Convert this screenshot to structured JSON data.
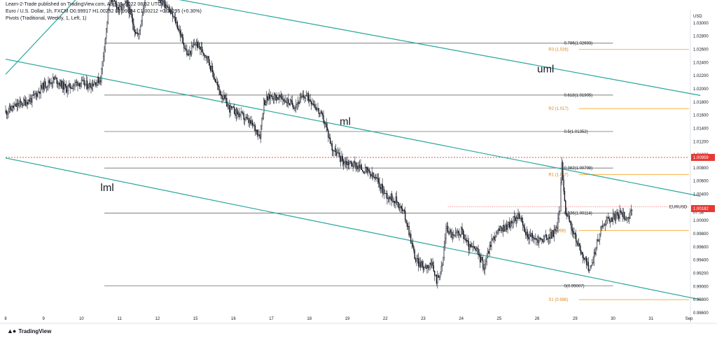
{
  "header": {
    "line1": "Learn-2-Trade published on TradingView.com, Aug 30, 2022 08:52 UTC+1",
    "line2": "Euro / U.S. Dollar, 1h, FXCM  O0.99917  H1.00232  L0.99834  C1.00212  +0.00295 (+0.30%)",
    "line3": "Pivots (Traditional, Weekly, 1, Left, 1)"
  },
  "branding": {
    "logo_icon": "tradingview-logo-icon",
    "text": "TradingView"
  },
  "chart_data": {
    "type": "candlestick",
    "symbol": "EURUSD",
    "currency_label": "USD",
    "timeframe": "1h",
    "ylim": [
      0.986,
      1.032
    ],
    "y_ticks": [
      0.986,
      0.988,
      0.99,
      0.992,
      0.994,
      0.996,
      0.998,
      1.0,
      1.002,
      1.004,
      1.006,
      1.008,
      1.01,
      1.012,
      1.014,
      1.016,
      1.018,
      1.02,
      1.022,
      1.024,
      1.026,
      1.028,
      1.03
    ],
    "y_tick_labels": [
      "0.98600",
      "0.98800",
      "0.99000",
      "0.99200",
      "0.99400",
      "0.99600",
      "0.99800",
      "1.00000",
      "1.00200",
      "1.00400",
      "1.00600",
      "1.00800",
      "1.01000",
      "1.01200",
      "1.01400",
      "1.01600",
      "1.01800",
      "1.02000",
      "1.02200",
      "1.02400",
      "1.02600",
      "1.02800",
      "1.03000"
    ],
    "x_labels": [
      "8",
      "9",
      "10",
      "11",
      "12",
      "15",
      "16",
      "17",
      "18",
      "19",
      "22",
      "23",
      "24",
      "25",
      "26",
      "29",
      "30",
      "31",
      "Sep"
    ],
    "close_path": [
      [
        0,
        1.0165
      ],
      [
        0.3,
        1.0175
      ],
      [
        0.7,
        1.0185
      ],
      [
        1.0,
        1.0205
      ],
      [
        1.3,
        1.0215
      ],
      [
        1.6,
        1.02
      ],
      [
        1.9,
        1.021
      ],
      [
        2.2,
        1.0205
      ],
      [
        2.5,
        1.0215
      ],
      [
        2.55,
        1.024
      ],
      [
        2.65,
        1.029
      ],
      [
        2.75,
        1.034
      ],
      [
        3.0,
        1.032
      ],
      [
        3.2,
        1.033
      ],
      [
        3.4,
        1.029
      ],
      [
        3.5,
        1.028
      ],
      [
        3.7,
        1.035
      ],
      [
        4.0,
        1.034
      ],
      [
        4.3,
        1.032
      ],
      [
        4.5,
        1.03
      ],
      [
        4.8,
        1.025
      ],
      [
        5.0,
        1.027
      ],
      [
        5.3,
        1.025
      ],
      [
        5.6,
        1.02
      ],
      [
        5.9,
        1.017
      ],
      [
        6.2,
        1.016
      ],
      [
        6.5,
        1.0145
      ],
      [
        6.7,
        1.013
      ],
      [
        6.8,
        1.018
      ],
      [
        7.0,
        1.019
      ],
      [
        7.3,
        1.0185
      ],
      [
        7.6,
        1.0175
      ],
      [
        7.9,
        1.019
      ],
      [
        8.1,
        1.018
      ],
      [
        8.4,
        1.015
      ],
      [
        8.6,
        1.011
      ],
      [
        8.9,
        1.009
      ],
      [
        9.2,
        1.0085
      ],
      [
        9.5,
        1.0075
      ],
      [
        9.8,
        1.006
      ],
      [
        10.0,
        1.004
      ],
      [
        10.3,
        1.003
      ],
      [
        10.5,
        1.001
      ],
      [
        10.6,
        0.999
      ],
      [
        10.8,
        0.994
      ],
      [
        11.0,
        0.993
      ],
      [
        11.2,
        0.9935
      ],
      [
        11.35,
        0.991
      ],
      [
        11.5,
        0.993
      ],
      [
        11.6,
        0.999
      ],
      [
        11.8,
        0.9975
      ],
      [
        12.0,
        0.9985
      ],
      [
        12.2,
        0.996
      ],
      [
        12.4,
        0.9955
      ],
      [
        12.6,
        0.993
      ],
      [
        12.8,
        0.997
      ],
      [
        13.0,
        0.9985
      ],
      [
        13.3,
        0.9995
      ],
      [
        13.5,
        1.001
      ],
      [
        13.7,
        0.998
      ],
      [
        14.0,
        0.997
      ],
      [
        14.3,
        0.9975
      ],
      [
        14.5,
        0.9985
      ],
      [
        14.6,
        1.002
      ],
      [
        14.65,
        1.0085
      ],
      [
        14.75,
        1.0015
      ],
      [
        14.9,
        0.999
      ],
      [
        15.1,
        0.996
      ],
      [
        15.3,
        0.9935
      ],
      [
        15.4,
        0.9925
      ],
      [
        15.55,
        0.996
      ],
      [
        15.7,
        0.999
      ],
      [
        15.8,
        1.0
      ],
      [
        16.0,
        1.0005
      ],
      [
        16.2,
        1.001
      ],
      [
        16.4,
        1.0005
      ],
      [
        16.5,
        1.0012
      ]
    ],
    "pivots": [
      {
        "label": "R3 (1.026)",
        "value": 1.026
      },
      {
        "label": "R2 (1.017)",
        "value": 1.017
      },
      {
        "label": "R1 (1.007)",
        "value": 1.007
      },
      {
        "label": "P (0.998)",
        "value": 0.9985
      },
      {
        "label": "S1 (0.988)",
        "value": 0.988
      }
    ],
    "fib_levels": [
      {
        "label": "0.786(1.02693)",
        "value": 1.02693
      },
      {
        "label": "0.618(1.01905)",
        "value": 1.01905
      },
      {
        "label": "0.5(1.01352)",
        "value": 1.01352
      },
      {
        "label": "0.382(1.00798)",
        "value": 1.00798
      },
      {
        "label": "0.236(1.00114)",
        "value": 1.00114
      },
      {
        "label": "0(0.99007)",
        "value": 0.99007
      }
    ],
    "fib_span": [
      2.6,
      16.0
    ],
    "channel": {
      "uml": {
        "label": "uml",
        "from": [
          2.25,
          1.036
        ],
        "to": [
          18.3,
          1.019
        ]
      },
      "ml": {
        "label": "ml",
        "from": [
          0.0,
          1.0245
        ],
        "to": [
          18.3,
          1.0037
        ]
      },
      "lml": {
        "label": "lml",
        "from": [
          0.0,
          1.0095
        ],
        "to": [
          18.3,
          0.988
        ]
      },
      "upper_start_line": {
        "from": [
          0.0,
          1.0222
        ],
        "to": [
          2.25,
          1.036
        ]
      }
    },
    "channel_labels": [
      {
        "text": "uml",
        "at": [
          14.0,
          1.0225
        ]
      },
      {
        "text": "ml",
        "at": [
          8.8,
          1.0145
        ]
      },
      {
        "text": "lml",
        "at": [
          2.5,
          1.0045
        ]
      }
    ],
    "dotted_line": {
      "value": 1.00959,
      "label": "1.00959"
    },
    "last_price": {
      "value": 1.00212,
      "label": "1.00212",
      "countdown": "07:58"
    },
    "price_tag": {
      "value": 1.00182,
      "label": "1.00182"
    },
    "colors": {
      "up": "#131722",
      "down": "#131722",
      "channel": "#26a69a",
      "fib": "#555555",
      "pivot": "#f5a623",
      "pivot_text": "#d9891a",
      "red": "#e53935",
      "grid_text": "#131722"
    }
  }
}
